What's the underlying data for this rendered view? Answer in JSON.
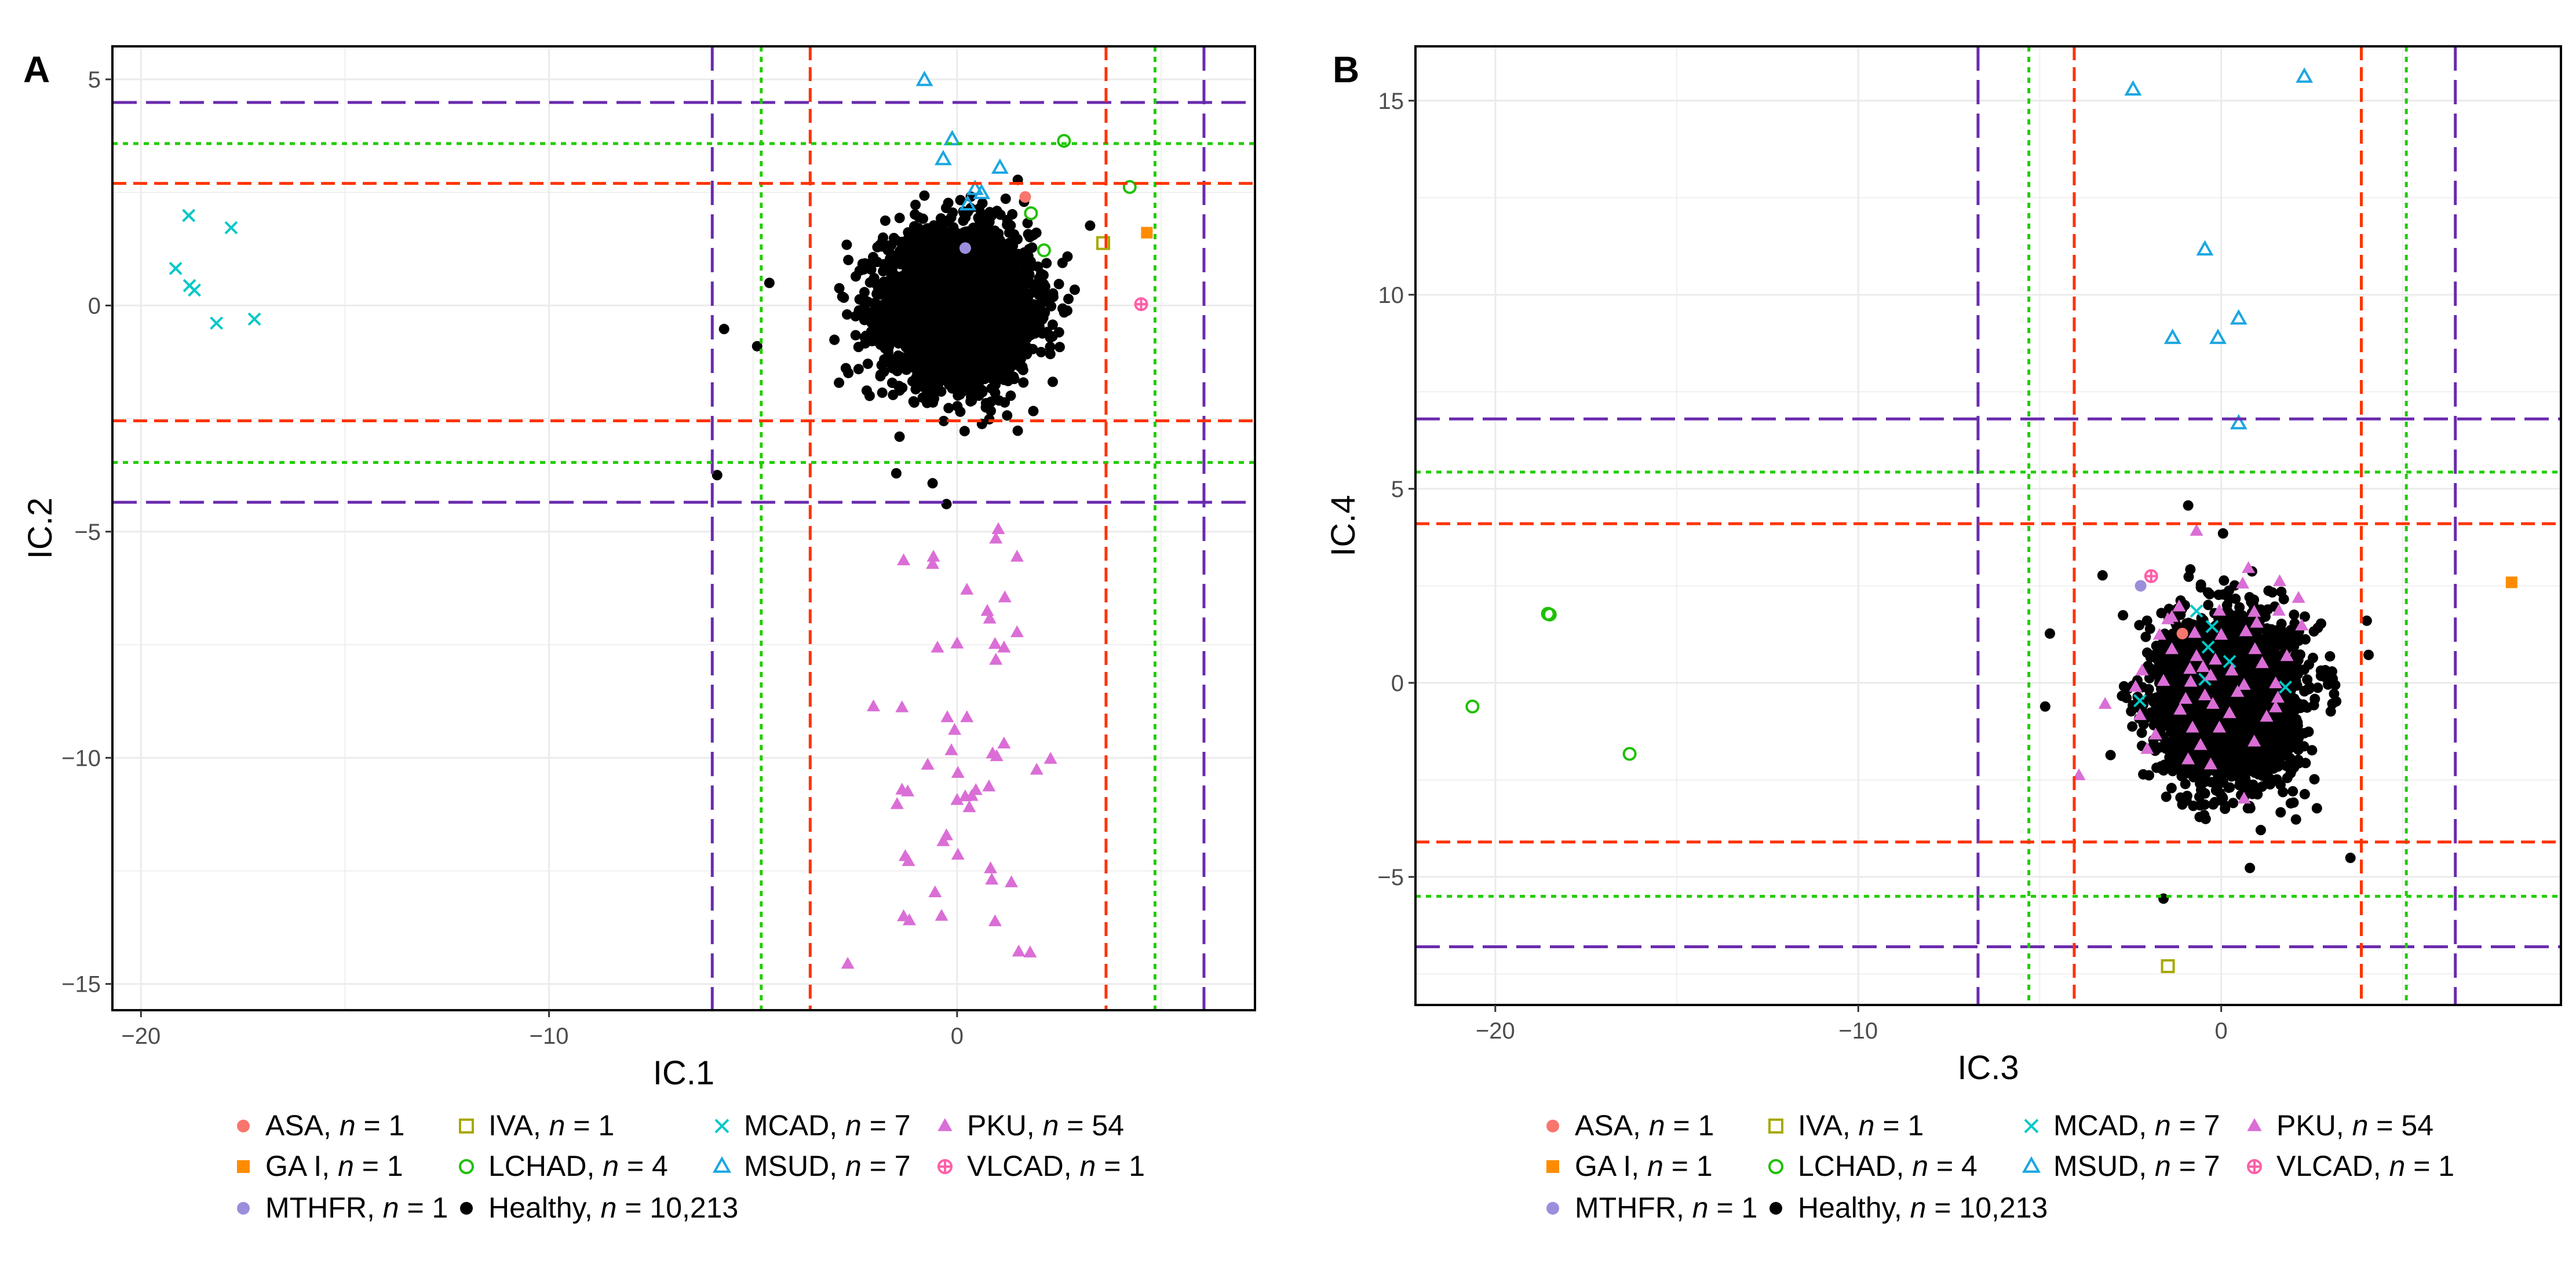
{
  "chart_data": [
    {
      "type": "scatter",
      "panel_label": "A",
      "xlabel": "IC.1",
      "ylabel": "IC.2",
      "xlim": [
        -20.7,
        7.3
      ],
      "ylim": [
        -15.58,
        5.73
      ],
      "xticks": [
        -20,
        -10,
        0
      ],
      "yticks": [
        5,
        0,
        -5,
        -10,
        -15
      ],
      "grid": true,
      "ref_lines": {
        "purple_long_dash": {
          "color": "#6A2BAE",
          "x": [
            -6.0,
            6.05
          ],
          "y": [
            4.49,
            -4.35
          ]
        },
        "green_dotted": {
          "color": "#22CC00",
          "x": [
            -4.8,
            4.85
          ],
          "y": [
            3.58,
            -3.47
          ]
        },
        "red_dash": {
          "color": "#FF3300",
          "x": [
            -3.6,
            3.65
          ],
          "y": [
            2.7,
            -2.55
          ]
        }
      },
      "healthy_cluster": {
        "n": 10213,
        "mean": [
          0,
          0
        ],
        "sd": [
          1.0,
          0.9
        ]
      },
      "series": [
        {
          "name": "ASA",
          "points": [
            [
              1.67,
              2.4
            ]
          ]
        },
        {
          "name": "GA I",
          "points": [
            [
              4.65,
              1.61
            ]
          ]
        },
        {
          "name": "IVA",
          "points": [
            [
              3.58,
              1.38
            ]
          ]
        },
        {
          "name": "LCHAD",
          "points": [
            [
              2.62,
              3.64
            ],
            [
              4.23,
              2.62
            ],
            [
              1.81,
              2.04
            ],
            [
              2.13,
              1.22
            ]
          ]
        },
        {
          "name": "MCAD",
          "points": [
            [
              -18.83,
              1.99
            ],
            [
              -17.79,
              1.72
            ],
            [
              -19.15,
              0.82
            ],
            [
              -18.81,
              0.44
            ],
            [
              -18.69,
              0.34
            ],
            [
              -18.15,
              -0.39
            ],
            [
              -17.22,
              -0.3
            ]
          ]
        },
        {
          "name": "MSUD",
          "points": [
            [
              -0.8,
              4.98
            ],
            [
              -0.12,
              3.67
            ],
            [
              -0.34,
              3.23
            ],
            [
              1.05,
              3.04
            ],
            [
              0.44,
              2.57
            ],
            [
              0.6,
              2.48
            ],
            [
              0.26,
              2.23
            ]
          ]
        },
        {
          "name": "MTHFR",
          "points": [
            [
              0.2,
              1.27
            ]
          ]
        },
        {
          "name": "PKU",
          "points": [
            [
              1.01,
              -4.95
            ],
            [
              0.95,
              -5.16
            ],
            [
              1.47,
              -5.56
            ],
            [
              -1.31,
              -5.64
            ],
            [
              -0.58,
              -5.56
            ],
            [
              -0.6,
              -5.72
            ],
            [
              0.24,
              -6.29
            ],
            [
              1.17,
              -6.46
            ],
            [
              0.74,
              -6.76
            ],
            [
              0.8,
              -6.93
            ],
            [
              1.47,
              -7.23
            ],
            [
              -0.48,
              -7.57
            ],
            [
              0,
              -7.48
            ],
            [
              0.93,
              -7.49
            ],
            [
              1.15,
              -7.57
            ],
            [
              0.95,
              -7.84
            ],
            [
              -2.05,
              -8.87
            ],
            [
              -1.35,
              -8.89
            ],
            [
              -0.24,
              -9.11
            ],
            [
              0.24,
              -9.11
            ],
            [
              -0.06,
              -9.39
            ],
            [
              1.15,
              -9.69
            ],
            [
              -0.14,
              -9.84
            ],
            [
              0.87,
              -9.91
            ],
            [
              0.97,
              -9.97
            ],
            [
              2.29,
              -10.03
            ],
            [
              -0.72,
              -10.16
            ],
            [
              1.95,
              -10.27
            ],
            [
              0.02,
              -10.34
            ],
            [
              -1.35,
              -10.71
            ],
            [
              -1.21,
              -10.75
            ],
            [
              -1.47,
              -11.03
            ],
            [
              0.78,
              -10.64
            ],
            [
              0.46,
              -10.72
            ],
            [
              0.36,
              -10.85
            ],
            [
              0,
              -10.94
            ],
            [
              0.2,
              -10.86
            ],
            [
              0.3,
              -11.1
            ],
            [
              -0.26,
              -11.72
            ],
            [
              -0.34,
              -11.85
            ],
            [
              0.02,
              -12.15
            ],
            [
              -1.27,
              -12.18
            ],
            [
              -1.19,
              -12.29
            ],
            [
              0.82,
              -12.45
            ],
            [
              0.85,
              -12.7
            ],
            [
              1.33,
              -12.76
            ],
            [
              -0.54,
              -12.98
            ],
            [
              -1.31,
              -13.51
            ],
            [
              -1.17,
              -13.6
            ],
            [
              -0.38,
              -13.5
            ],
            [
              0.93,
              -13.62
            ],
            [
              1.51,
              -14.29
            ],
            [
              1.79,
              -14.31
            ],
            [
              -2.68,
              -14.56
            ]
          ]
        },
        {
          "name": "VLCAD",
          "points": [
            [
              4.51,
              0.03
            ]
          ]
        },
        {
          "name": "Healthy",
          "points": [
            [
              -5.88,
              -3.75
            ],
            [
              -1.49,
              -3.71
            ],
            [
              -0.6,
              -3.93
            ],
            [
              -0.26,
              -4.39
            ],
            [
              -1.41,
              -2.9
            ],
            [
              -5.71,
              -0.52
            ],
            [
              -4.9,
              -0.9
            ],
            [
              -4.6,
              0.5
            ]
          ]
        }
      ]
    },
    {
      "type": "scatter",
      "panel_label": "B",
      "xlabel": "IC.3",
      "ylabel": "IC.4",
      "xlim": [
        -22.2,
        9.36
      ],
      "ylim": [
        -8.3,
        16.4
      ],
      "xticks": [
        -20,
        -10,
        0
      ],
      "yticks": [
        15,
        10,
        5,
        0,
        -5
      ],
      "grid": true,
      "ref_lines": {
        "purple_long_dash": {
          "color": "#6A2BAE",
          "x": [
            -6.7,
            6.45
          ],
          "y": [
            6.8,
            -6.8
          ]
        },
        "green_dotted": {
          "color": "#22CC00",
          "x": [
            -5.3,
            5.1
          ],
          "y": [
            5.43,
            -5.5
          ]
        },
        "red_dash": {
          "color": "#FF3300",
          "x": [
            -4.05,
            3.86
          ],
          "y": [
            4.1,
            -4.1
          ]
        }
      },
      "healthy_cluster": {
        "n": 10213,
        "mean": [
          0.2,
          -0.4
        ],
        "sd": [
          1.0,
          1.1
        ]
      },
      "series": [
        {
          "name": "ASA",
          "points": [
            [
              -1.07,
              1.27
            ]
          ]
        },
        {
          "name": "GA I",
          "points": [
            [
              8.0,
              2.59
            ]
          ]
        },
        {
          "name": "IVA",
          "points": [
            [
              -1.47,
              -7.3
            ]
          ]
        },
        {
          "name": "LCHAD",
          "points": [
            [
              -18.55,
              1.78
            ],
            [
              -18.5,
              1.76
            ],
            [
              -20.63,
              -0.61
            ],
            [
              -16.3,
              -1.83
            ]
          ]
        },
        {
          "name": "MCAD",
          "points": [
            [
              -0.68,
              1.85
            ],
            [
              -0.25,
              1.45
            ],
            [
              -0.36,
              0.92
            ],
            [
              0.23,
              0.55
            ],
            [
              -0.45,
              0.09
            ],
            [
              1.77,
              -0.11
            ],
            [
              -2.24,
              -0.46
            ]
          ]
        },
        {
          "name": "MSUD",
          "points": [
            [
              -2.43,
              15.28
            ],
            [
              2.29,
              15.61
            ],
            [
              -0.45,
              11.16
            ],
            [
              0.48,
              9.38
            ],
            [
              -1.34,
              8.88
            ],
            [
              -0.09,
              8.88
            ],
            [
              0.48,
              6.68
            ]
          ]
        },
        {
          "name": "MTHFR",
          "points": [
            [
              -2.22,
              2.5
            ]
          ]
        },
        {
          "name": "PKU",
          "points": [
            [
              -0.68,
              3.91
            ],
            [
              -3.92,
              -2.39
            ],
            [
              0.75,
              2.95
            ],
            [
              1.61,
              2.61
            ],
            [
              2.13,
              2.18
            ],
            [
              0.59,
              2.55
            ],
            [
              -1.16,
              1.96
            ],
            [
              -1.47,
              1.63
            ],
            [
              -1.7,
              1.23
            ],
            [
              -0.05,
              1.85
            ],
            [
              0.91,
              1.82
            ],
            [
              0.98,
              1.54
            ],
            [
              1.59,
              1.85
            ],
            [
              2.22,
              1.47
            ],
            [
              -0.73,
              1.28
            ],
            [
              0.93,
              0.86
            ],
            [
              -0.68,
              0.68
            ],
            [
              -0.16,
              0.59
            ],
            [
              -0.86,
              0.35
            ],
            [
              0.29,
              0.31
            ],
            [
              -2.18,
              0.31
            ],
            [
              -0.29,
              0.18
            ],
            [
              -0.84,
              0.02
            ],
            [
              0.63,
              -0.06
            ],
            [
              1.5,
              -0.02
            ],
            [
              -2.36,
              -0.11
            ],
            [
              -0.98,
              -0.42
            ],
            [
              -0.23,
              -0.55
            ],
            [
              1.56,
              -0.39
            ],
            [
              1.5,
              -0.64
            ],
            [
              -3.2,
              -0.55
            ],
            [
              -2.24,
              -0.84
            ],
            [
              -0.79,
              -1.16
            ],
            [
              -0.05,
              -1.16
            ],
            [
              -1.81,
              -1.34
            ],
            [
              -0.29,
              -2.11
            ],
            [
              0.63,
              -2.99
            ],
            [
              -0.5,
              0.4
            ],
            [
              -1.36,
              1.69
            ],
            [
              0.68,
              1.32
            ],
            [
              -0.45,
              -0.33
            ],
            [
              1.13,
              0.5
            ],
            [
              -1.59,
              0.04
            ],
            [
              0.23,
              -0.79
            ],
            [
              -1.13,
              -0.7
            ],
            [
              1.25,
              -0.88
            ],
            [
              0.45,
              -0.24
            ],
            [
              -1.36,
              0.86
            ],
            [
              1.81,
              0.68
            ],
            [
              -0.57,
              -1.61
            ],
            [
              0.91,
              -1.52
            ],
            [
              -2.04,
              -1.71
            ],
            [
              0,
              1.23
            ],
            [
              -0.91,
              -1.98
            ]
          ]
        },
        {
          "name": "VLCAD",
          "points": [
            [
              -1.93,
              2.75
            ]
          ]
        },
        {
          "name": "Healthy",
          "points": [
            [
              -0.91,
              4.57
            ],
            [
              0.05,
              3.85
            ],
            [
              -3.27,
              2.77
            ],
            [
              -4.85,
              -0.61
            ],
            [
              -1.59,
              -5.56
            ],
            [
              3.56,
              -4.51
            ],
            [
              0.79,
              -4.77
            ],
            [
              4.01,
              1.6
            ],
            [
              4.06,
              0.72
            ],
            [
              2.06,
              -3.52
            ],
            [
              -4.72,
              1.27
            ]
          ]
        }
      ]
    }
  ],
  "legend": [
    {
      "name": "ASA",
      "n": "1",
      "color": "#F8766D",
      "shape": "circle-filled"
    },
    {
      "name": "GA I",
      "n": "1",
      "color": "#FF8C00",
      "shape": "square-filled"
    },
    {
      "name": "MTHFR",
      "n": "1",
      "color": "#9B8FDC",
      "shape": "circle-filled"
    },
    {
      "name": "IVA",
      "n": "1",
      "color": "#A8A800",
      "shape": "square-open"
    },
    {
      "name": "LCHAD",
      "n": "4",
      "color": "#1EC000",
      "shape": "circle-open"
    },
    {
      "name": "Healthy",
      "n": "10,213",
      "color": "#000000",
      "shape": "circle-filled"
    },
    {
      "name": "MCAD",
      "n": "7",
      "color": "#00C8C8",
      "shape": "x"
    },
    {
      "name": "MSUD",
      "n": "7",
      "color": "#1AA7E0",
      "shape": "triangle-open"
    },
    {
      "name": "PKU",
      "n": "54",
      "color": "#DA6ED6",
      "shape": "triangle-filled"
    },
    {
      "name": "VLCAD",
      "n": "1",
      "color": "#FF5FA8",
      "shape": "circle-plus"
    }
  ],
  "legend_n_symbol": "n"
}
